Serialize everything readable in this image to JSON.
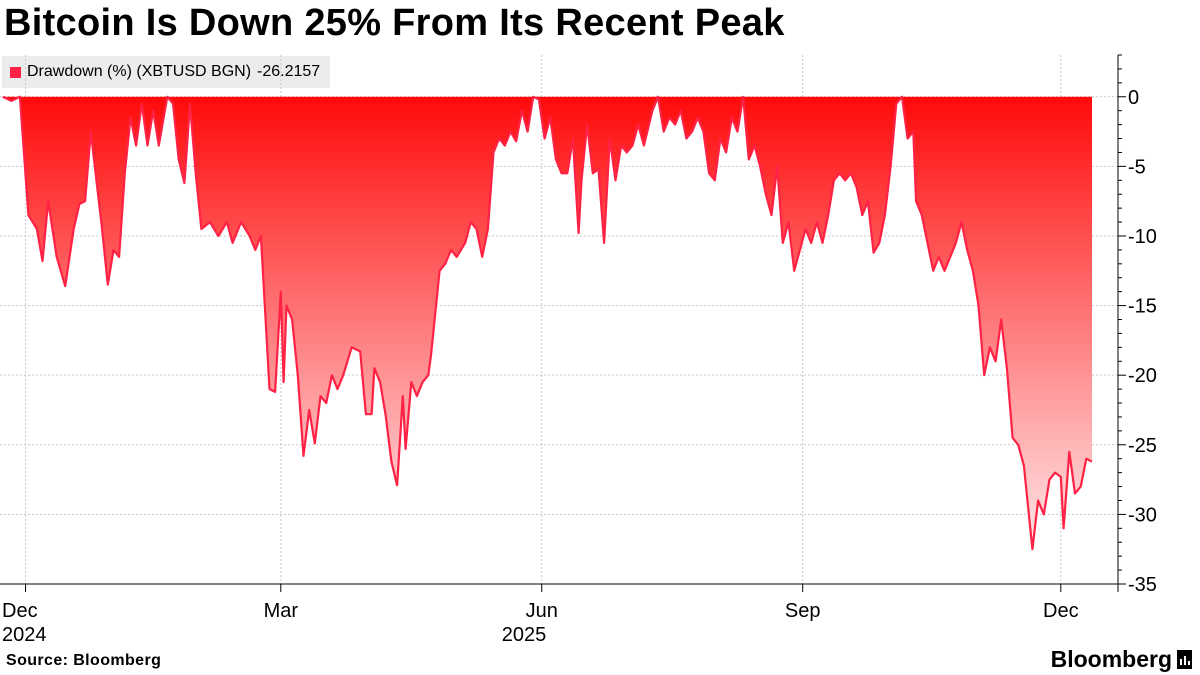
{
  "title": "Bitcoin Is Down 25% From Its Recent Peak",
  "legend": {
    "label": "Drawdown (%) (XBTUSD BGN)",
    "last_value": "-26.2157",
    "color": "#ff2244"
  },
  "footer": {
    "source": "Source: Bloomberg",
    "brand": "Bloomberg",
    "brand_icon": "bloomberg-terminal-icon"
  },
  "colors": {
    "line": "#ff2244",
    "fill_top": "#ff0a0a",
    "fill_bottom": "#ffe8ea",
    "grid": "#c8c8c8"
  },
  "chart_data": {
    "type": "area",
    "title": "Bitcoin Is Down 25% From Its Recent Peak",
    "series": [
      {
        "name": "Drawdown (%) (XBTUSD BGN)",
        "last_value": -26.2157,
        "points": [
          [
            "2024-11-23",
            0
          ],
          [
            "2024-11-26",
            -0.3
          ],
          [
            "2024-11-29",
            0
          ],
          [
            "2024-12-02",
            -8.5
          ],
          [
            "2024-12-05",
            -9.5
          ],
          [
            "2024-12-07",
            -11.8
          ],
          [
            "2024-12-09",
            -7.5
          ],
          [
            "2024-12-12",
            -11.5
          ],
          [
            "2024-12-15",
            -13.6
          ],
          [
            "2024-12-18",
            -9.5
          ],
          [
            "2024-12-20",
            -7.7
          ],
          [
            "2024-12-22",
            -7.5
          ],
          [
            "2024-12-24",
            -2.5
          ],
          [
            "2024-12-26",
            -6.0
          ],
          [
            "2024-12-28",
            -9.5
          ],
          [
            "2024-12-30",
            -13.5
          ],
          [
            "2025-01-01",
            -11.0
          ],
          [
            "2025-01-03",
            -11.5
          ],
          [
            "2025-01-05",
            -5.5
          ],
          [
            "2025-01-07",
            -1.5
          ],
          [
            "2025-01-09",
            -3.5
          ],
          [
            "2025-01-11",
            -0.5
          ],
          [
            "2025-01-13",
            -3.5
          ],
          [
            "2025-01-15",
            -1.0
          ],
          [
            "2025-01-17",
            -3.5
          ],
          [
            "2025-01-20",
            0
          ],
          [
            "2025-01-22",
            -0.5
          ],
          [
            "2025-01-24",
            -4.5
          ],
          [
            "2025-01-26",
            -6.2
          ],
          [
            "2025-01-28",
            -0.5
          ],
          [
            "2025-01-30",
            -5.5
          ],
          [
            "2025-02-01",
            -9.5
          ],
          [
            "2025-02-04",
            -9.0
          ],
          [
            "2025-02-07",
            -10.0
          ],
          [
            "2025-02-10",
            -9.0
          ],
          [
            "2025-02-12",
            -10.5
          ],
          [
            "2025-02-15",
            -9.0
          ],
          [
            "2025-02-18",
            -10.0
          ],
          [
            "2025-02-20",
            -11.0
          ],
          [
            "2025-02-22",
            -10.0
          ],
          [
            "2025-02-25",
            -21.0
          ],
          [
            "2025-02-27",
            -21.2
          ],
          [
            "2025-03-01",
            -14.0
          ],
          [
            "2025-03-02",
            -20.5
          ],
          [
            "2025-03-03",
            -15.0
          ],
          [
            "2025-03-05",
            -16.0
          ],
          [
            "2025-03-07",
            -20.0
          ],
          [
            "2025-03-09",
            -25.8
          ],
          [
            "2025-03-11",
            -22.5
          ],
          [
            "2025-03-13",
            -24.9
          ],
          [
            "2025-03-15",
            -21.5
          ],
          [
            "2025-03-17",
            -22.0
          ],
          [
            "2025-03-19",
            -20.0
          ],
          [
            "2025-03-21",
            -21.0
          ],
          [
            "2025-03-23",
            -20.0
          ],
          [
            "2025-03-26",
            -18.0
          ],
          [
            "2025-03-29",
            -18.3
          ],
          [
            "2025-03-31",
            -22.8
          ],
          [
            "2025-04-02",
            -22.8
          ],
          [
            "2025-04-03",
            -19.5
          ],
          [
            "2025-04-05",
            -20.5
          ],
          [
            "2025-04-07",
            -22.9
          ],
          [
            "2025-04-09",
            -26.2
          ],
          [
            "2025-04-11",
            -27.9
          ],
          [
            "2025-04-13",
            -21.5
          ],
          [
            "2025-04-14",
            -25.3
          ],
          [
            "2025-04-16",
            -20.5
          ],
          [
            "2025-04-18",
            -21.5
          ],
          [
            "2025-04-20",
            -20.5
          ],
          [
            "2025-04-22",
            -20.0
          ],
          [
            "2025-04-23",
            -18.5
          ],
          [
            "2025-04-26",
            -12.5
          ],
          [
            "2025-04-28",
            -12.0
          ],
          [
            "2025-04-30",
            -11.0
          ],
          [
            "2025-05-02",
            -11.5
          ],
          [
            "2025-05-05",
            -10.5
          ],
          [
            "2025-05-07",
            -9.0
          ],
          [
            "2025-05-09",
            -9.5
          ],
          [
            "2025-05-11",
            -11.5
          ],
          [
            "2025-05-13",
            -9.5
          ],
          [
            "2025-05-15",
            -4.0
          ],
          [
            "2025-05-17",
            -3.0
          ],
          [
            "2025-05-19",
            -3.5
          ],
          [
            "2025-05-21",
            -2.5
          ],
          [
            "2025-05-23",
            -3.2
          ],
          [
            "2025-05-25",
            -1.0
          ],
          [
            "2025-05-27",
            -2.5
          ],
          [
            "2025-05-29",
            0
          ],
          [
            "2025-05-31",
            -0.2
          ],
          [
            "2025-06-02",
            -3.0
          ],
          [
            "2025-06-04",
            -1.5
          ],
          [
            "2025-06-06",
            -4.5
          ],
          [
            "2025-06-08",
            -5.5
          ],
          [
            "2025-06-10",
            -5.5
          ],
          [
            "2025-06-12",
            -3.0
          ],
          [
            "2025-06-14",
            -9.8
          ],
          [
            "2025-06-15",
            -6.0
          ],
          [
            "2025-06-17",
            -2.0
          ],
          [
            "2025-06-19",
            -5.5
          ],
          [
            "2025-06-21",
            -5.2
          ],
          [
            "2025-06-23",
            -10.5
          ],
          [
            "2025-06-25",
            -3.0
          ],
          [
            "2025-06-27",
            -6.0
          ],
          [
            "2025-06-29",
            -3.5
          ],
          [
            "2025-07-01",
            -4.0
          ],
          [
            "2025-07-03",
            -3.5
          ],
          [
            "2025-07-05",
            -2.0
          ],
          [
            "2025-07-07",
            -3.5
          ],
          [
            "2025-07-10",
            -1.0
          ],
          [
            "2025-07-12",
            0
          ],
          [
            "2025-07-14",
            -2.5
          ],
          [
            "2025-07-16",
            -1.5
          ],
          [
            "2025-07-18",
            -2.0
          ],
          [
            "2025-07-20",
            -1.0
          ],
          [
            "2025-07-22",
            -3.0
          ],
          [
            "2025-07-24",
            -2.5
          ],
          [
            "2025-07-26",
            -1.5
          ],
          [
            "2025-07-28",
            -2.5
          ],
          [
            "2025-07-30",
            -5.5
          ],
          [
            "2025-08-01",
            -6.0
          ],
          [
            "2025-08-03",
            -3.0
          ],
          [
            "2025-08-05",
            -4.0
          ],
          [
            "2025-08-07",
            -1.5
          ],
          [
            "2025-08-09",
            -2.5
          ],
          [
            "2025-08-11",
            0
          ],
          [
            "2025-08-13",
            -4.5
          ],
          [
            "2025-08-15",
            -3.5
          ],
          [
            "2025-08-17",
            -5.0
          ],
          [
            "2025-08-19",
            -7.0
          ],
          [
            "2025-08-21",
            -8.5
          ],
          [
            "2025-08-23",
            -5.0
          ],
          [
            "2025-08-25",
            -10.5
          ],
          [
            "2025-08-27",
            -9.0
          ],
          [
            "2025-08-29",
            -12.5
          ],
          [
            "2025-08-31",
            -11.0
          ],
          [
            "2025-09-02",
            -9.5
          ],
          [
            "2025-09-04",
            -10.5
          ],
          [
            "2025-09-06",
            -9.0
          ],
          [
            "2025-09-08",
            -10.5
          ],
          [
            "2025-09-10",
            -8.5
          ],
          [
            "2025-09-12",
            -6.0
          ],
          [
            "2025-09-14",
            -5.5
          ],
          [
            "2025-09-16",
            -6.0
          ],
          [
            "2025-09-18",
            -5.5
          ],
          [
            "2025-09-20",
            -6.5
          ],
          [
            "2025-09-22",
            -8.5
          ],
          [
            "2025-09-24",
            -7.5
          ],
          [
            "2025-09-26",
            -11.2
          ],
          [
            "2025-09-28",
            -10.5
          ],
          [
            "2025-09-30",
            -8.5
          ],
          [
            "2025-10-02",
            -5.0
          ],
          [
            "2025-10-04",
            -0.5
          ],
          [
            "2025-10-06",
            0
          ],
          [
            "2025-10-08",
            -3.0
          ],
          [
            "2025-10-10",
            -2.5
          ],
          [
            "2025-10-11",
            -7.5
          ],
          [
            "2025-10-13",
            -8.5
          ],
          [
            "2025-10-15",
            -10.5
          ],
          [
            "2025-10-17",
            -12.5
          ],
          [
            "2025-10-19",
            -11.5
          ],
          [
            "2025-10-21",
            -12.5
          ],
          [
            "2025-10-23",
            -11.5
          ],
          [
            "2025-10-25",
            -10.5
          ],
          [
            "2025-10-27",
            -9.0
          ],
          [
            "2025-10-29",
            -11.0
          ],
          [
            "2025-10-31",
            -12.5
          ],
          [
            "2025-11-02",
            -15.0
          ],
          [
            "2025-11-04",
            -20.0
          ],
          [
            "2025-11-06",
            -18.0
          ],
          [
            "2025-11-08",
            -19.0
          ],
          [
            "2025-11-10",
            -16.0
          ],
          [
            "2025-11-12",
            -19.5
          ],
          [
            "2025-11-14",
            -24.5
          ],
          [
            "2025-11-16",
            -25.0
          ],
          [
            "2025-11-18",
            -26.5
          ],
          [
            "2025-11-21",
            -32.5
          ],
          [
            "2025-11-23",
            -29.0
          ],
          [
            "2025-11-25",
            -30.0
          ],
          [
            "2025-11-27",
            -27.5
          ],
          [
            "2025-11-29",
            -27.0
          ],
          [
            "2025-12-01",
            -27.3
          ],
          [
            "2025-12-02",
            -31.0
          ],
          [
            "2025-12-04",
            -25.5
          ],
          [
            "2025-12-06",
            -28.5
          ],
          [
            "2025-12-08",
            -28.0
          ],
          [
            "2025-12-10",
            -26.0
          ],
          [
            "2025-12-12",
            -26.2157
          ]
        ]
      }
    ],
    "x_ticks": [
      {
        "date": "2024-12-01",
        "label": "Dec",
        "year_label": "2024"
      },
      {
        "date": "2025-03-01",
        "label": "Mar",
        "year_label": ""
      },
      {
        "date": "2025-06-01",
        "label": "Jun",
        "year_label": "2025"
      },
      {
        "date": "2025-09-01",
        "label": "Sep",
        "year_label": ""
      },
      {
        "date": "2025-12-01",
        "label": "Dec",
        "year_label": ""
      }
    ],
    "y_ticks": [
      0,
      -5,
      -10,
      -15,
      -20,
      -25,
      -30,
      -35
    ],
    "x_range": [
      "2024-11-22",
      "2025-12-12"
    ],
    "ylim": [
      -35,
      3
    ],
    "ylabel": "",
    "xlabel": "",
    "y_axis_side": "right",
    "grid": true,
    "legend_position": "top-left"
  }
}
